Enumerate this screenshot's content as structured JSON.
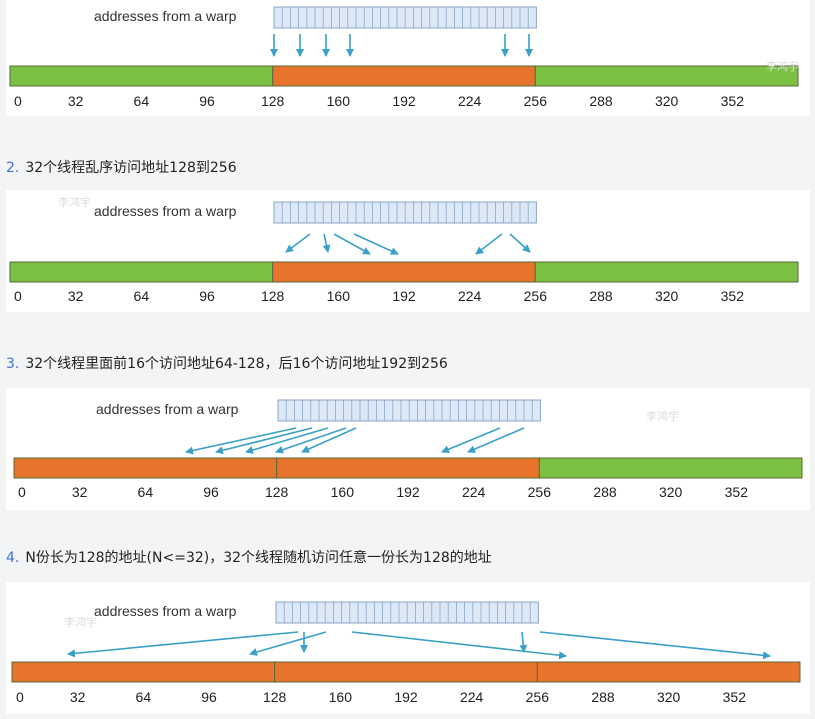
{
  "common": {
    "warp_label": "addresses from a warp",
    "axis_ticks": [
      "0",
      "32",
      "64",
      "96",
      "128",
      "160",
      "192",
      "224",
      "256",
      "288",
      "320",
      "352"
    ],
    "colors": {
      "green": "#7cc242",
      "orange": "#e8732a",
      "arrow": "#3aa0c8",
      "warp_fill": "#dce8f6",
      "warp_line": "#8aa6c8"
    },
    "watermark": "李鸿宇"
  },
  "captions": [
    {
      "num": "2.",
      "text": "32个线程乱序访问地址128到256"
    },
    {
      "num": "3.",
      "text": "32个线程里面前16个访问地址64-128，后16个访问地址192到256"
    },
    {
      "num": "4.",
      "text": "N份长为128的地址(N<=32)，32个线程随机访问任意一份长为128的地址"
    }
  ],
  "diagrams": [
    {
      "segments": [
        {
          "from": 0,
          "to": 128,
          "color": "green"
        },
        {
          "from": 128,
          "to": 256,
          "color": "orange"
        },
        {
          "from": 256,
          "to": 384,
          "color": "green"
        }
      ]
    },
    {
      "segments": [
        {
          "from": 0,
          "to": 128,
          "color": "green"
        },
        {
          "from": 128,
          "to": 256,
          "color": "orange"
        },
        {
          "from": 256,
          "to": 384,
          "color": "green"
        }
      ]
    },
    {
      "segments": [
        {
          "from": 0,
          "to": 128,
          "color": "orange"
        },
        {
          "from": 128,
          "to": 256,
          "color": "orange"
        },
        {
          "from": 256,
          "to": 384,
          "color": "green"
        }
      ]
    },
    {
      "segments": [
        {
          "from": 0,
          "to": 128,
          "color": "orange"
        },
        {
          "from": 128,
          "to": 256,
          "color": "orange"
        },
        {
          "from": 256,
          "to": 384,
          "color": "orange"
        }
      ]
    }
  ]
}
